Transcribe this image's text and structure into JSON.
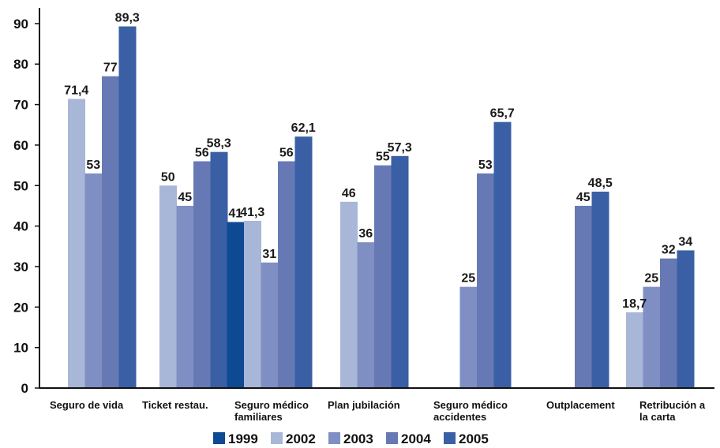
{
  "chart_data": {
    "type": "bar",
    "categories": [
      [
        "Seguro de vida"
      ],
      [
        "Ticket restau."
      ],
      [
        "Seguro médico",
        "familiares"
      ],
      [
        "Plan jubilación"
      ],
      [
        "Seguro médico",
        "accidentes"
      ],
      [
        "Outplacement"
      ],
      [
        "Retribución a",
        "la carta"
      ]
    ],
    "series": [
      {
        "name": "1999",
        "color": "#0d4a93",
        "values": [
          null,
          null,
          41,
          null,
          null,
          null,
          null
        ]
      },
      {
        "name": "2002",
        "color": "#a8b6d8",
        "values": [
          71.4,
          50,
          41.3,
          46,
          null,
          null,
          18.7
        ]
      },
      {
        "name": "2003",
        "color": "#7f8fc3",
        "values": [
          53,
          45,
          31,
          36,
          25,
          null,
          25
        ]
      },
      {
        "name": "2004",
        "color": "#6779b4",
        "values": [
          77,
          56,
          56,
          55,
          53,
          45,
          32
        ]
      },
      {
        "name": "2005",
        "color": "#3a5fa5",
        "values": [
          89.3,
          58.3,
          62.1,
          57.3,
          65.7,
          48.5,
          34
        ]
      }
    ],
    "data_labels": [
      [
        null,
        null,
        "41",
        null,
        null,
        null,
        null
      ],
      [
        "71,4",
        "50",
        "41,3",
        "46",
        null,
        null,
        "18,7"
      ],
      [
        "53",
        "45",
        "31",
        "36",
        "25",
        null,
        "25"
      ],
      [
        "77",
        "56",
        "56",
        "55",
        "53",
        "45",
        "32"
      ],
      [
        "89,3",
        "58,3",
        "62,1",
        "57,3",
        "65,7",
        "48,5",
        "34"
      ]
    ],
    "yticks": [
      0,
      10,
      20,
      30,
      40,
      50,
      60,
      70,
      80,
      90
    ],
    "ylim": [
      0,
      92
    ],
    "title": "",
    "xlabel": "",
    "ylabel": "",
    "grid": false,
    "legend_position": "bottom"
  }
}
